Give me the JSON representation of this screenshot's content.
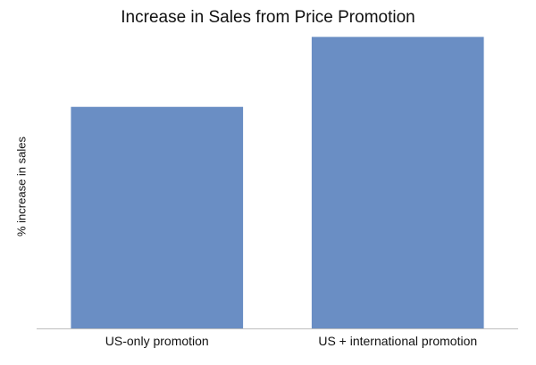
{
  "chart_data": {
    "type": "bar",
    "title": "Increase in Sales from Price Promotion",
    "xlabel": "",
    "ylabel": "% increase in sales",
    "categories": [
      "US-only promotion",
      "US + international promotion"
    ],
    "values": [
      0.76,
      1.0
    ],
    "ylim": [
      0,
      1.05
    ],
    "grid": false,
    "legend": "none",
    "bar_color": "#6A8EC4",
    "axis_color": "#BFBFBF"
  }
}
